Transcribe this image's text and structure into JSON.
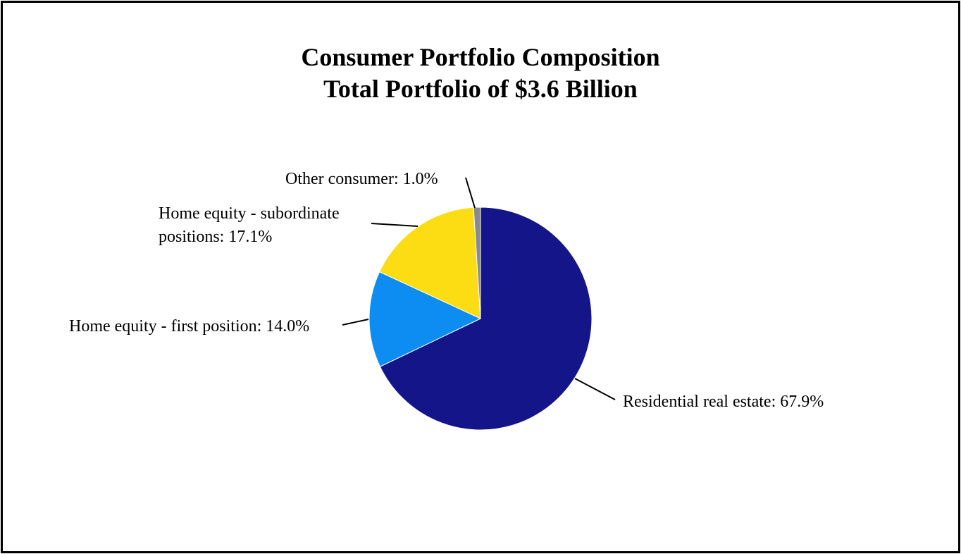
{
  "chart_data": {
    "type": "pie",
    "title": "Consumer Portfolio Composition",
    "subtitle": "Total Portfolio of $3.6 Billion",
    "slices": [
      {
        "id": "residential",
        "label": "Residential real estate: 67.9%",
        "name": "Residential real estate",
        "value": 67.9,
        "color": "#131589"
      },
      {
        "id": "first",
        "label": "Home equity - first position: 14.0%",
        "name": "Home equity - first position",
        "value": 14.0,
        "color": "#0d8cf2"
      },
      {
        "id": "subordinate",
        "label_lines": [
          "Home equity - subordinate",
          "positions: 17.1%"
        ],
        "name": "Home equity - subordinate positions",
        "value": 17.1,
        "color": "#fcdc12"
      },
      {
        "id": "other",
        "label": "Other consumer: 1.0%",
        "name": "Other consumer",
        "value": 1.0,
        "color": "#8a8a8a"
      }
    ],
    "start_angle": "12 o'clock",
    "direction": "clockwise",
    "legend": "none (data labels with leader lines)"
  }
}
